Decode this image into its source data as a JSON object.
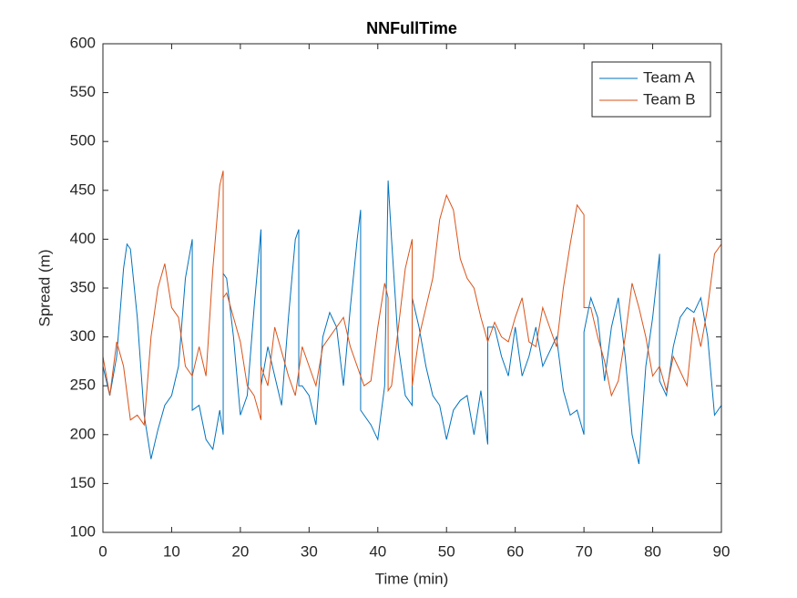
{
  "chart_data": {
    "type": "line",
    "title": "NNFullTime",
    "x_label": "Time (min)",
    "y_label": "Spread (m)",
    "xlim": [
      0,
      90
    ],
    "xticks": [
      0,
      10,
      20,
      30,
      40,
      50,
      60,
      70,
      80,
      90
    ],
    "ylim": [
      100,
      600
    ],
    "yticks": [
      100,
      150,
      200,
      250,
      300,
      350,
      400,
      450,
      500,
      550,
      600
    ],
    "grid": false,
    "legend_position": "upper-right",
    "series": [
      {
        "name": "Team A",
        "color": "#0072BD",
        "x": [
          0,
          1,
          2,
          3,
          3.5,
          4,
          5,
          6,
          7,
          8,
          9,
          10,
          11,
          12,
          13,
          13,
          14,
          15,
          16,
          17,
          17.5,
          17.5,
          18,
          19,
          20,
          21,
          22,
          23,
          23,
          24,
          25,
          26,
          27,
          28,
          28.5,
          28.5,
          29,
          30,
          31,
          32,
          33,
          34,
          35,
          36,
          37,
          37.5,
          37.5,
          38,
          39,
          40,
          41,
          41.5,
          42,
          43,
          44,
          45,
          45,
          46,
          47,
          48,
          49,
          50,
          51,
          52,
          53,
          54,
          55,
          56,
          56,
          57,
          58,
          59,
          60,
          61,
          62,
          63,
          64,
          65,
          66,
          67,
          68,
          69,
          70,
          70,
          71,
          72,
          73,
          74,
          75,
          76,
          77,
          78,
          79,
          80,
          81,
          81,
          82,
          83,
          84,
          85,
          86,
          87,
          88,
          89,
          90
        ],
        "values": [
          270,
          240,
          280,
          370,
          395,
          390,
          320,
          220,
          175,
          205,
          230,
          240,
          270,
          360,
          400,
          225,
          230,
          195,
          185,
          225,
          200,
          365,
          360,
          300,
          220,
          240,
          330,
          410,
          250,
          290,
          260,
          230,
          320,
          400,
          410,
          250,
          250,
          240,
          210,
          300,
          325,
          310,
          250,
          330,
          400,
          430,
          225,
          220,
          210,
          195,
          250,
          460,
          400,
          290,
          240,
          230,
          340,
          310,
          270,
          240,
          230,
          195,
          225,
          235,
          240,
          200,
          245,
          190,
          310,
          310,
          280,
          260,
          310,
          260,
          280,
          310,
          270,
          285,
          300,
          245,
          220,
          225,
          200,
          305,
          340,
          320,
          255,
          310,
          340,
          280,
          200,
          170,
          270,
          320,
          385,
          255,
          240,
          290,
          320,
          330,
          325,
          340,
          300,
          220,
          230
        ]
      },
      {
        "name": "Team B",
        "color": "#D95319",
        "x": [
          0,
          1,
          2,
          3,
          4,
          5,
          6,
          7,
          8,
          9,
          10,
          11,
          12,
          13,
          14,
          15,
          16,
          17,
          17.5,
          17.5,
          18,
          19,
          20,
          21,
          22,
          23,
          23,
          24,
          25,
          26,
          27,
          28,
          29,
          30,
          31,
          32,
          33,
          34,
          35,
          36,
          37,
          38,
          39,
          40,
          41,
          41.5,
          41.5,
          42,
          43,
          44,
          45,
          45,
          46,
          47,
          48,
          49,
          50,
          51,
          52,
          53,
          54,
          55,
          56,
          57,
          58,
          59,
          60,
          61,
          62,
          63,
          64,
          65,
          66,
          67,
          68,
          69,
          70,
          70,
          71,
          72,
          73,
          74,
          75,
          76,
          77,
          78,
          79,
          80,
          81,
          82,
          83,
          84,
          85,
          86,
          87,
          88,
          89,
          90
        ],
        "values": [
          280,
          240,
          295,
          270,
          215,
          220,
          210,
          300,
          350,
          375,
          330,
          320,
          270,
          260,
          290,
          260,
          370,
          455,
          470,
          340,
          345,
          320,
          295,
          250,
          240,
          215,
          270,
          250,
          310,
          285,
          260,
          240,
          290,
          270,
          250,
          290,
          300,
          310,
          320,
          290,
          270,
          250,
          255,
          310,
          355,
          340,
          245,
          250,
          310,
          370,
          400,
          250,
          300,
          330,
          360,
          420,
          445,
          430,
          380,
          360,
          350,
          320,
          295,
          315,
          300,
          295,
          320,
          340,
          295,
          290,
          330,
          310,
          290,
          350,
          395,
          435,
          425,
          330,
          330,
          300,
          275,
          240,
          255,
          300,
          355,
          330,
          300,
          260,
          270,
          245,
          280,
          265,
          250,
          320,
          290,
          330,
          385,
          395
        ]
      }
    ]
  }
}
